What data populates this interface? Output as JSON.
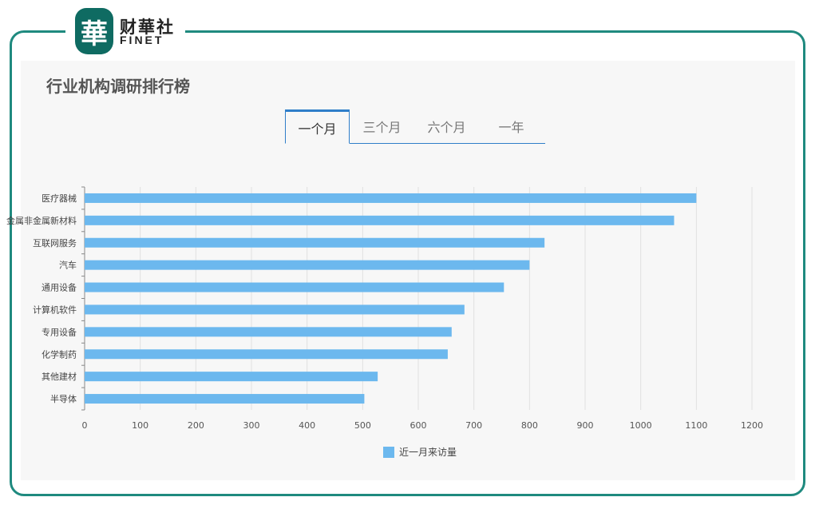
{
  "brand": {
    "logo_char": "華",
    "name_cn": "财華社",
    "name_en": "FINET"
  },
  "title": "行业机构调研排行榜",
  "tabs": [
    {
      "label": "一个月",
      "active": true
    },
    {
      "label": "三个月",
      "active": false
    },
    {
      "label": "六个月",
      "active": false
    },
    {
      "label": "一年",
      "active": false
    }
  ],
  "colors": {
    "bar": "#6cb8ee",
    "frame": "#1f8a7f",
    "tab_accent": "#2f7ec9"
  },
  "chart_data": {
    "type": "bar",
    "orientation": "horizontal",
    "categories": [
      "医疗器械",
      "金属非金属新材料",
      "互联网服务",
      "汽车",
      "通用设备",
      "计算机软件",
      "专用设备",
      "化学制药",
      "其他建材",
      "半导体"
    ],
    "series": [
      {
        "name": "近一月来访量",
        "values": [
          1100,
          1060,
          827,
          800,
          754,
          683,
          660,
          653,
          527,
          503
        ]
      }
    ],
    "xlim": [
      0,
      1200
    ],
    "xticks": [
      0,
      100,
      200,
      300,
      400,
      500,
      600,
      700,
      800,
      900,
      1000,
      1100,
      1200
    ],
    "grid": true,
    "legend_position": "bottom"
  }
}
